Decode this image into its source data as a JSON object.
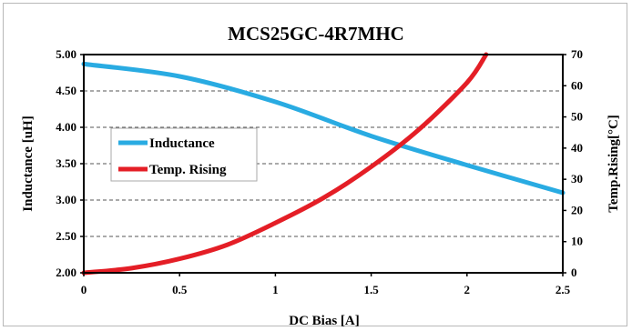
{
  "chart_data": {
    "type": "line",
    "title": "MCS25GC-4R7MHC",
    "xlabel": "DC Bias [A]",
    "ylabel": "Inductance [uH]",
    "y2label": "Temp.Rising[°C]",
    "xlim": [
      0,
      2.5
    ],
    "ylim": [
      2.0,
      5.0
    ],
    "y2lim": [
      0,
      70
    ],
    "x_ticks": [
      "0",
      "0.5",
      "1",
      "1.5",
      "2",
      "2.5"
    ],
    "y_ticks": [
      "2.00",
      "2.50",
      "3.00",
      "3.50",
      "4.00",
      "4.50",
      "5.00"
    ],
    "y2_ticks": [
      "0",
      "10",
      "20",
      "30",
      "40",
      "50",
      "60",
      "70"
    ],
    "grid": "horizontal dashed",
    "legend_position": "center-left",
    "series": [
      {
        "name": "Inductance",
        "axis": "left",
        "color": "#29abe2",
        "x": [
          0,
          0.5,
          1.0,
          1.5,
          2.0,
          2.5
        ],
        "values": [
          4.87,
          4.7,
          4.35,
          3.88,
          3.48,
          3.1
        ]
      },
      {
        "name": "Temp. Rising",
        "axis": "right",
        "color": "#e41e26",
        "x": [
          0,
          0.25,
          0.5,
          0.75,
          1.0,
          1.25,
          1.5,
          1.75,
          2.0,
          2.1
        ],
        "values": [
          0,
          1.5,
          4.5,
          9,
          16,
          24,
          34,
          46,
          61,
          70
        ]
      }
    ]
  }
}
